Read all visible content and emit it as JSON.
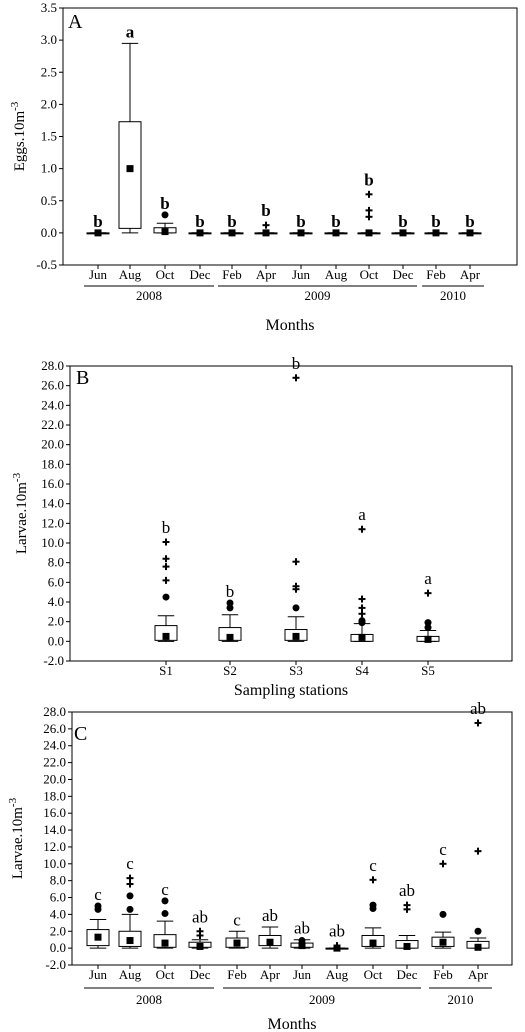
{
  "chart_data": [
    {
      "type": "box",
      "panel": "A",
      "ylabel_base": "Eggs.10m",
      "ylabel_sup": "-3",
      "xlabel": "Months",
      "ylim": [
        -0.5,
        3.5
      ],
      "yticks": [
        "-0.5",
        "0.0",
        "0.5",
        "1.0",
        "1.5",
        "2.0",
        "2.5",
        "3.0",
        "3.5"
      ],
      "letter_bold": true,
      "groups": [
        {
          "label": "2008",
          "from": 0,
          "to": 3
        },
        {
          "label": "2009",
          "from": 4,
          "to": 9
        },
        {
          "label": "2010",
          "from": 10,
          "to": 11
        }
      ],
      "categories": [
        "Jun",
        "Aug",
        "Oct",
        "Dec",
        "Feb",
        "Apr",
        "Jun",
        "Aug",
        "Oct",
        "Dec",
        "Feb",
        "Apr"
      ],
      "boxes": [
        {
          "min": 0,
          "q1": 0,
          "q3": 0,
          "max": 0,
          "mean": 0,
          "out": [],
          "ext": [],
          "letter": "b"
        },
        {
          "min": 0,
          "q1": 0.07,
          "q3": 1.73,
          "max": 2.95,
          "mean": 1.0,
          "out": [],
          "ext": [],
          "letter": "a"
        },
        {
          "min": 0,
          "q1": 0,
          "q3": 0.08,
          "max": 0.15,
          "mean": 0.02,
          "out": [
            0.28
          ],
          "ext": [],
          "letter": "b"
        },
        {
          "min": 0,
          "q1": 0,
          "q3": 0,
          "max": 0,
          "mean": 0,
          "out": [],
          "ext": [],
          "letter": "b"
        },
        {
          "min": 0,
          "q1": 0,
          "q3": 0,
          "max": 0,
          "mean": 0,
          "out": [],
          "ext": [],
          "letter": "b"
        },
        {
          "min": 0,
          "q1": 0,
          "q3": 0,
          "max": 0,
          "mean": 0,
          "out": [],
          "ext": [
            0.12
          ],
          "letter": "b"
        },
        {
          "min": 0,
          "q1": 0,
          "q3": 0,
          "max": 0,
          "mean": 0,
          "out": [],
          "ext": [],
          "letter": "b"
        },
        {
          "min": 0,
          "q1": 0,
          "q3": 0,
          "max": 0,
          "mean": 0,
          "out": [],
          "ext": [],
          "letter": "b"
        },
        {
          "min": 0,
          "q1": 0,
          "q3": 0,
          "max": 0,
          "mean": 0,
          "out": [],
          "ext": [
            0.25,
            0.35,
            0.6
          ],
          "letter": "b"
        },
        {
          "min": 0,
          "q1": 0,
          "q3": 0,
          "max": 0,
          "mean": 0,
          "out": [],
          "ext": [],
          "letter": "b"
        },
        {
          "min": 0,
          "q1": 0,
          "q3": 0,
          "max": 0,
          "mean": 0,
          "out": [],
          "ext": [],
          "letter": "b"
        },
        {
          "min": 0,
          "q1": 0,
          "q3": 0,
          "max": 0,
          "mean": 0,
          "out": [],
          "ext": [],
          "letter": "b"
        }
      ]
    },
    {
      "type": "box",
      "panel": "B",
      "ylabel_base": "Larvae.10m",
      "ylabel_sup": "-3",
      "xlabel": "Sampling  stations",
      "ylim": [
        -2,
        28
      ],
      "yticks": [
        "-2.0",
        "0.0",
        "2.0",
        "4.0",
        "6.0",
        "8.0",
        "10.0",
        "12.0",
        "14.0",
        "16.0",
        "18.0",
        "20.0",
        "22.0",
        "24.0",
        "26.0",
        "28.0"
      ],
      "letter_bold": false,
      "groups": [],
      "categories": [
        "S1",
        "S2",
        "S3",
        "S4",
        "S5"
      ],
      "boxes": [
        {
          "min": 0,
          "q1": 0.1,
          "q3": 1.6,
          "max": 2.6,
          "mean": 0.5,
          "out": [
            4.5
          ],
          "ext": [
            6.2,
            7.6,
            8.4,
            10.1
          ],
          "letter": "b"
        },
        {
          "min": 0,
          "q1": 0.1,
          "q3": 1.4,
          "max": 2.7,
          "mean": 0.4,
          "out": [
            3.4,
            3.9
          ],
          "ext": [],
          "letter": "b"
        },
        {
          "min": 0,
          "q1": 0.1,
          "q3": 1.2,
          "max": 2.5,
          "mean": 0.5,
          "out": [
            3.4
          ],
          "ext": [
            5.3,
            5.6,
            8.1,
            26.8
          ],
          "letter": "b"
        },
        {
          "min": 0,
          "q1": 0,
          "q3": 0.7,
          "max": 1.8,
          "mean": 0.4,
          "out": [
            1.9,
            2.1
          ],
          "ext": [
            2.8,
            3.4,
            4.3,
            11.4
          ],
          "letter": "a"
        },
        {
          "min": 0,
          "q1": 0,
          "q3": 0.5,
          "max": 1.1,
          "mean": 0.2,
          "out": [
            1.4,
            1.9
          ],
          "ext": [
            4.9
          ],
          "letter": "a"
        }
      ]
    },
    {
      "type": "box",
      "panel": "C",
      "ylabel_base": "Larvae.10m",
      "ylabel_sup": "-3",
      "xlabel": "Months",
      "ylim": [
        -2,
        28
      ],
      "yticks": [
        "-2.0",
        "0.0",
        "2.0",
        "4.0",
        "6.0",
        "8.0",
        "10.0",
        "12.0",
        "14.0",
        "16.0",
        "18.0",
        "20.0",
        "22.0",
        "24.0",
        "26.0",
        "28.0"
      ],
      "letter_bold": false,
      "groups": [
        {
          "label": "2008",
          "from": 0,
          "to": 3
        },
        {
          "label": "2009",
          "from": 4,
          "to": 9
        },
        {
          "label": "2010",
          "from": 10,
          "to": 11
        }
      ],
      "categories": [
        "Jun",
        "Aug",
        "Oct",
        "Dec",
        "Feb",
        "Apr",
        "Jun",
        "Aug",
        "Oct",
        "Dec",
        "Feb",
        "Apr"
      ],
      "boxes": [
        {
          "min": 0,
          "q1": 0.3,
          "q3": 2.2,
          "max": 3.4,
          "mean": 1.3,
          "out": [
            4.6,
            5.0
          ],
          "ext": [],
          "letter": "c"
        },
        {
          "min": 0,
          "q1": 0.2,
          "q3": 2.0,
          "max": 4.0,
          "mean": 0.9,
          "out": [
            4.6,
            6.2
          ],
          "ext": [
            7.6,
            8.3
          ],
          "letter": "c"
        },
        {
          "min": 0,
          "q1": 0.1,
          "q3": 1.6,
          "max": 3.2,
          "mean": 0.6,
          "out": [
            4.1,
            5.6
          ],
          "ext": [],
          "letter": "c"
        },
        {
          "min": 0,
          "q1": 0.1,
          "q3": 0.7,
          "max": 1.0,
          "mean": 0.2,
          "out": [],
          "ext": [
            1.5,
            2.0
          ],
          "letter": "ab"
        },
        {
          "min": 0,
          "q1": 0.1,
          "q3": 1.2,
          "max": 2.0,
          "mean": 0.6,
          "out": [],
          "ext": [],
          "letter": "c"
        },
        {
          "min": 0,
          "q1": 0.3,
          "q3": 1.5,
          "max": 2.5,
          "mean": 0.7,
          "out": [],
          "ext": [],
          "letter": "ab"
        },
        {
          "min": 0,
          "q1": 0.1,
          "q3": 0.6,
          "max": 1.0,
          "mean": 0.3,
          "out": [
            0.9
          ],
          "ext": [],
          "letter": "ab"
        },
        {
          "min": 0,
          "q1": 0,
          "q3": 0,
          "max": 0,
          "mean": 0,
          "out": [],
          "ext": [
            0.3
          ],
          "letter": "ab"
        },
        {
          "min": 0,
          "q1": 0.2,
          "q3": 1.5,
          "max": 2.4,
          "mean": 0.6,
          "out": [
            4.7,
            5.1
          ],
          "ext": [
            8.1
          ],
          "letter": "c"
        },
        {
          "min": 0,
          "q1": 0,
          "q3": 0.9,
          "max": 1.5,
          "mean": 0.2,
          "out": [],
          "ext": [
            4.6,
            5.1
          ],
          "letter": "ab"
        },
        {
          "min": 0,
          "q1": 0.2,
          "q3": 1.3,
          "max": 1.9,
          "mean": 0.7,
          "out": [
            4.0
          ],
          "ext": [
            10.0
          ],
          "letter": "c"
        },
        {
          "min": 0,
          "q1": 0,
          "q3": 0.8,
          "max": 1.2,
          "mean": 0.1,
          "out": [
            2.0
          ],
          "ext": [
            11.5,
            26.7
          ],
          "letter": "ab"
        }
      ]
    }
  ]
}
